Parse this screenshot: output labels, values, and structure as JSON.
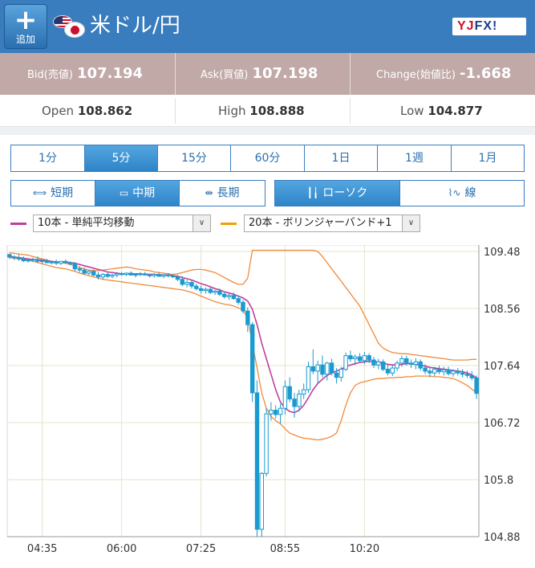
{
  "header": {
    "add_label": "追加",
    "pair": "米ドル/円",
    "logo": "YJFX!"
  },
  "quote": {
    "bid_label": "Bid(売値)",
    "bid_main": "107.19",
    "bid_pip": "4",
    "ask_label": "Ask(買値)",
    "ask_main": "107.19",
    "ask_pip": "8",
    "change_label": "Change(始値比)",
    "change_value": "-1.668"
  },
  "ohl": {
    "open_label": "Open",
    "open_value": "108.862",
    "high_label": "High",
    "high_value": "108.888",
    "low_label": "Low",
    "low_value": "104.877"
  },
  "timeframes": [
    "1分",
    "5分",
    "15分",
    "60分",
    "1日",
    "1週",
    "1月"
  ],
  "timeframe_active": 1,
  "range": [
    "短期",
    "中期",
    "長期"
  ],
  "range_active": 1,
  "chart_types": [
    "ローソク",
    "線"
  ],
  "chart_type_active": 0,
  "indicators": {
    "ma_label": "10本 - 単純平均移動",
    "ma_color": "#c0409a",
    "bb_label": "20本 - ボリンジャーバンド+1",
    "bb_color": "#f0a000",
    "dropdown_glyph": "∨"
  },
  "colors": {
    "header": "#3a7dbf",
    "quote_bg": "#c1a9a7",
    "accent": "#2e84c8",
    "candle": "#1a9ad0",
    "bb_line": "#f08a3c"
  },
  "chart_data": {
    "type": "candlestick",
    "y_ticks": [
      "109.48",
      "108.56",
      "107.64",
      "106.72",
      "105.8",
      "104.88"
    ],
    "x_ticks": [
      "04:35",
      "06:00",
      "07:25",
      "08:55",
      "10:20"
    ],
    "ylim": [
      104.88,
      109.48
    ],
    "grid": true,
    "candles": [
      [
        109.43,
        109.45,
        109.36,
        109.39
      ],
      [
        109.39,
        109.42,
        109.34,
        109.38
      ],
      [
        109.38,
        109.43,
        109.33,
        109.36
      ],
      [
        109.36,
        109.4,
        109.31,
        109.33
      ],
      [
        109.33,
        109.36,
        109.3,
        109.34
      ],
      [
        109.34,
        109.38,
        109.31,
        109.35
      ],
      [
        109.35,
        109.4,
        109.3,
        109.32
      ],
      [
        109.32,
        109.35,
        109.28,
        109.33
      ],
      [
        109.33,
        109.36,
        109.29,
        109.3
      ],
      [
        109.3,
        109.33,
        109.27,
        109.31
      ],
      [
        109.31,
        109.35,
        109.26,
        109.29
      ],
      [
        109.29,
        109.33,
        109.26,
        109.32
      ],
      [
        109.32,
        109.35,
        109.28,
        109.3
      ],
      [
        109.3,
        109.32,
        109.26,
        109.28
      ],
      [
        109.28,
        109.31,
        109.16,
        109.2
      ],
      [
        109.2,
        109.24,
        109.14,
        109.18
      ],
      [
        109.18,
        109.22,
        109.11,
        109.13
      ],
      [
        109.13,
        109.18,
        109.1,
        109.16
      ],
      [
        109.16,
        109.19,
        109.08,
        109.1
      ],
      [
        109.1,
        109.15,
        109.03,
        109.07
      ],
      [
        109.07,
        109.13,
        109.03,
        109.11
      ],
      [
        109.11,
        109.14,
        109.05,
        109.08
      ],
      [
        109.08,
        109.12,
        109.05,
        109.1
      ],
      [
        109.1,
        109.15,
        109.06,
        109.12
      ],
      [
        109.12,
        109.15,
        109.09,
        109.11
      ],
      [
        109.11,
        109.14,
        109.08,
        109.13
      ],
      [
        109.13,
        109.16,
        109.09,
        109.1
      ],
      [
        109.1,
        109.13,
        109.06,
        109.11
      ],
      [
        109.11,
        109.15,
        109.08,
        109.12
      ],
      [
        109.12,
        109.15,
        109.09,
        109.1
      ],
      [
        109.1,
        109.12,
        109.06,
        109.09
      ],
      [
        109.09,
        109.13,
        109.06,
        109.11
      ],
      [
        109.11,
        109.14,
        109.07,
        109.08
      ],
      [
        109.08,
        109.12,
        109.05,
        109.1
      ],
      [
        109.1,
        109.13,
        109.06,
        109.09
      ],
      [
        109.09,
        109.12,
        109.05,
        109.07
      ],
      [
        109.07,
        109.1,
        109.0,
        109.03
      ],
      [
        109.03,
        109.08,
        108.92,
        108.95
      ],
      [
        108.95,
        109.02,
        108.9,
        108.98
      ],
      [
        108.98,
        109.02,
        108.88,
        108.92
      ],
      [
        108.92,
        108.96,
        108.85,
        108.88
      ],
      [
        108.88,
        108.93,
        108.8,
        108.85
      ],
      [
        108.85,
        108.9,
        108.8,
        108.87
      ],
      [
        108.87,
        108.9,
        108.79,
        108.82
      ],
      [
        108.82,
        108.86,
        108.78,
        108.84
      ],
      [
        108.84,
        108.88,
        108.76,
        108.79
      ],
      [
        108.79,
        108.83,
        108.72,
        108.75
      ],
      [
        108.75,
        108.8,
        108.7,
        108.77
      ],
      [
        108.77,
        108.82,
        108.7,
        108.72
      ],
      [
        108.72,
        108.77,
        108.62,
        108.66
      ],
      [
        108.66,
        108.7,
        108.48,
        108.52
      ],
      [
        108.52,
        108.58,
        108.18,
        108.3
      ],
      [
        108.3,
        108.34,
        107.05,
        107.2
      ],
      [
        107.2,
        107.4,
        104.88,
        105.0
      ],
      [
        105.0,
        105.92,
        104.88,
        105.9
      ],
      [
        105.9,
        106.95,
        105.85,
        106.86
      ],
      [
        106.86,
        107.05,
        106.75,
        106.92
      ],
      [
        106.92,
        107.0,
        106.78,
        106.85
      ],
      [
        106.85,
        107.02,
        106.7,
        106.95
      ],
      [
        106.95,
        107.4,
        106.85,
        107.3
      ],
      [
        107.3,
        107.45,
        107.05,
        107.1
      ],
      [
        107.1,
        107.2,
        106.8,
        106.98
      ],
      [
        106.98,
        107.25,
        106.9,
        107.18
      ],
      [
        107.18,
        107.35,
        107.1,
        107.25
      ],
      [
        107.25,
        107.7,
        107.2,
        107.62
      ],
      [
        107.62,
        107.9,
        107.5,
        107.55
      ],
      [
        107.55,
        107.72,
        107.35,
        107.65
      ],
      [
        107.65,
        107.8,
        107.45,
        107.5
      ],
      [
        107.5,
        107.7,
        107.4,
        107.68
      ],
      [
        107.68,
        107.75,
        107.48,
        107.52
      ],
      [
        107.52,
        107.6,
        107.35,
        107.45
      ],
      [
        107.45,
        107.62,
        107.38,
        107.58
      ],
      [
        107.58,
        107.85,
        107.55,
        107.8
      ],
      [
        107.8,
        107.88,
        107.7,
        107.75
      ],
      [
        107.75,
        107.82,
        107.65,
        107.78
      ],
      [
        107.78,
        107.84,
        107.68,
        107.72
      ],
      [
        107.72,
        107.86,
        107.66,
        107.8
      ],
      [
        107.8,
        107.84,
        107.68,
        107.73
      ],
      [
        107.73,
        107.78,
        107.6,
        107.65
      ],
      [
        107.65,
        107.75,
        107.58,
        107.7
      ],
      [
        107.7,
        107.74,
        107.55,
        107.58
      ],
      [
        107.58,
        107.66,
        107.48,
        107.52
      ],
      [
        107.52,
        107.64,
        107.47,
        107.6
      ],
      [
        107.6,
        107.72,
        107.55,
        107.68
      ],
      [
        107.68,
        107.8,
        107.62,
        107.75
      ],
      [
        107.75,
        107.8,
        107.64,
        107.68
      ],
      [
        107.68,
        107.74,
        107.6,
        107.66
      ],
      [
        107.66,
        107.76,
        107.58,
        107.7
      ],
      [
        107.7,
        107.74,
        107.56,
        107.6
      ],
      [
        107.6,
        107.66,
        107.5,
        107.55
      ],
      [
        107.55,
        107.6,
        107.45,
        107.52
      ],
      [
        107.52,
        107.62,
        107.47,
        107.58
      ],
      [
        107.58,
        107.64,
        107.5,
        107.54
      ],
      [
        107.54,
        107.62,
        107.48,
        107.57
      ],
      [
        107.57,
        107.62,
        107.48,
        107.51
      ],
      [
        107.51,
        107.58,
        107.46,
        107.55
      ],
      [
        107.55,
        107.6,
        107.48,
        107.52
      ],
      [
        107.52,
        107.58,
        107.45,
        107.5
      ],
      [
        107.5,
        107.56,
        107.44,
        107.48
      ],
      [
        107.48,
        107.55,
        107.4,
        107.44
      ],
      [
        107.44,
        107.48,
        107.1,
        107.19
      ]
    ],
    "ma_values": [
      109.4,
      109.39,
      109.38,
      109.37,
      109.36,
      109.35,
      109.35,
      109.34,
      109.33,
      109.32,
      109.31,
      109.31,
      109.31,
      109.3,
      109.29,
      109.27,
      109.25,
      109.23,
      109.21,
      109.19,
      109.17,
      109.15,
      109.14,
      109.13,
      109.12,
      109.12,
      109.12,
      109.12,
      109.12,
      109.11,
      109.11,
      109.11,
      109.1,
      109.1,
      109.1,
      109.09,
      109.08,
      109.06,
      109.04,
      109.02,
      108.99,
      108.96,
      108.94,
      108.91,
      108.88,
      108.86,
      108.83,
      108.81,
      108.79,
      108.76,
      108.73,
      108.68,
      108.55,
      108.3,
      108.0,
      107.75,
      107.5,
      107.25,
      107.05,
      106.95,
      106.9,
      106.88,
      106.92,
      107.0,
      107.12,
      107.25,
      107.35,
      107.42,
      107.48,
      107.52,
      107.55,
      107.58,
      107.62,
      107.65,
      107.67,
      107.69,
      107.7,
      107.71,
      107.7,
      107.7,
      107.68,
      107.66,
      107.65,
      107.65,
      107.66,
      107.67,
      107.67,
      107.66,
      107.65,
      107.63,
      107.61,
      107.6,
      107.59,
      107.58,
      107.57,
      107.56,
      107.55,
      107.54,
      107.52,
      107.49,
      107.44
    ],
    "bb_upper": [
      109.46,
      109.45,
      109.44,
      109.43,
      109.42,
      109.4,
      109.38,
      109.36,
      109.34,
      109.32,
      109.31,
      109.3,
      109.29,
      109.27,
      109.25,
      109.22,
      109.2,
      109.18,
      109.17,
      109.17,
      109.18,
      109.19,
      109.2,
      109.21,
      109.22,
      109.23,
      109.22,
      109.2,
      109.19,
      109.18,
      109.17,
      109.15,
      109.14,
      109.13,
      109.12,
      109.11,
      109.12,
      109.14,
      109.16,
      109.18,
      109.19,
      109.19,
      109.18,
      109.16,
      109.14,
      109.1,
      109.06,
      109.02,
      108.98,
      108.95,
      108.95,
      109.05,
      109.5,
      109.5,
      109.5,
      109.5,
      109.5,
      109.5,
      109.5,
      109.5,
      109.5,
      109.5,
      109.5,
      109.5,
      109.5,
      109.5,
      109.48,
      109.4,
      109.3,
      109.2,
      109.1,
      109.0,
      108.9,
      108.8,
      108.7,
      108.6,
      108.45,
      108.3,
      108.15,
      108.0,
      107.92,
      107.88,
      107.85,
      107.84,
      107.83,
      107.83,
      107.82,
      107.81,
      107.8,
      107.79,
      107.78,
      107.77,
      107.76,
      107.75,
      107.74,
      107.73,
      107.73,
      107.73,
      107.73,
      107.74,
      107.74
    ],
    "bb_lower": [
      109.38,
      109.37,
      109.36,
      109.35,
      109.34,
      109.32,
      109.3,
      109.28,
      109.26,
      109.24,
      109.22,
      109.21,
      109.2,
      109.18,
      109.16,
      109.13,
      109.11,
      109.09,
      109.07,
      109.05,
      109.03,
      109.02,
      109.01,
      109.0,
      108.99,
      108.98,
      108.97,
      108.96,
      108.95,
      108.94,
      108.93,
      108.92,
      108.91,
      108.9,
      108.89,
      108.88,
      108.87,
      108.86,
      108.84,
      108.82,
      108.79,
      108.76,
      108.73,
      108.7,
      108.67,
      108.65,
      108.63,
      108.62,
      108.6,
      108.57,
      108.54,
      108.4,
      108.0,
      107.6,
      107.2,
      106.95,
      106.82,
      106.75,
      106.7,
      106.62,
      106.55,
      106.52,
      106.49,
      106.47,
      106.46,
      106.45,
      106.44,
      106.45,
      106.47,
      106.5,
      106.55,
      106.75,
      107.0,
      107.2,
      107.32,
      107.36,
      107.38,
      107.4,
      107.42,
      107.43,
      107.43,
      107.44,
      107.44,
      107.45,
      107.45,
      107.46,
      107.46,
      107.47,
      107.47,
      107.47,
      107.47,
      107.46,
      107.46,
      107.45,
      107.44,
      107.43,
      107.4,
      107.36,
      107.32,
      107.26,
      107.2
    ]
  }
}
